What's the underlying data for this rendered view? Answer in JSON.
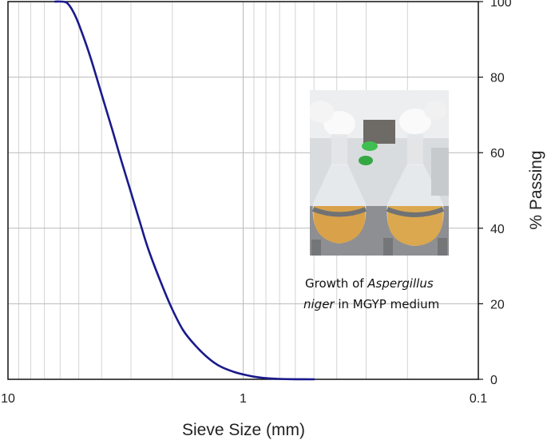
{
  "chart_data": {
    "type": "line",
    "title": "",
    "xlabel": "Sieve Size (mm)",
    "ylabel": "% Passing",
    "x_scale": "log",
    "x_reversed": true,
    "xlim": [
      10,
      0.1
    ],
    "ylim": [
      0,
      100
    ],
    "x_ticks": [
      10,
      1,
      0.1
    ],
    "x_tick_labels": [
      "10",
      "1",
      "0.1"
    ],
    "y_ticks": [
      0,
      20,
      40,
      60,
      80,
      100
    ],
    "y_tick_labels": [
      "0",
      "20",
      "40",
      "60",
      "80",
      "100"
    ],
    "y_axis_side": "right",
    "grid": true,
    "series": [
      {
        "color": "#1a1a8c",
        "x": [
          6.3,
          5.9,
          5.6,
          5.3,
          5.0,
          4.5,
          4.0,
          3.6,
          3.3,
          3.0,
          2.7,
          2.5,
          2.2,
          2.0,
          1.8,
          1.6,
          1.4,
          1.25,
          1.1,
          1.0,
          0.9,
          0.8,
          0.7,
          0.6,
          0.5
        ],
        "y": [
          100,
          100,
          99.6,
          97.5,
          94,
          86,
          75.5,
          66,
          58,
          49.5,
          40,
          33.5,
          24.5,
          18.5,
          13,
          9,
          5.5,
          3.4,
          2.0,
          1.3,
          0.7,
          0.3,
          0.1,
          0.02,
          0
        ]
      }
    ],
    "annotations": [
      {
        "lines": [
          [
            "Growth of ",
            "Aspergillus"
          ],
          [
            "niger",
            " in MGYP medium"
          ]
        ]
      }
    ]
  }
}
